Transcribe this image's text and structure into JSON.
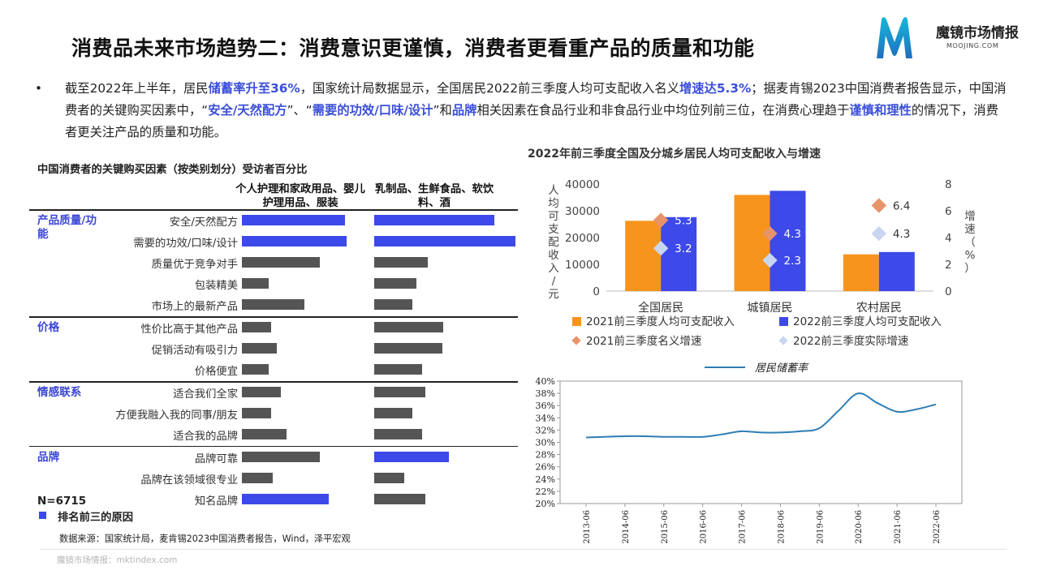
{
  "header": {
    "title": "消费品未来市场趋势二：消费意识更谨慎，消费者更看重产品的质量和功能",
    "logo_name": "魔镜市场情报",
    "logo_sub": "MOOJING.COM"
  },
  "bullet": {
    "dot": "•",
    "segments": [
      {
        "t": "截至2022年上半年，居民",
        "hl": false
      },
      {
        "t": "储蓄率升至36%",
        "hl": true
      },
      {
        "t": "，国家统计局数据显示，全国居民2022前三季度人均可支配收入名义",
        "hl": false
      },
      {
        "t": "增速达5.3%",
        "hl": true
      },
      {
        "t": "；据麦肯锡2023中国消费者报告显示，中国消费者的关键购买因素中，“",
        "hl": false
      },
      {
        "t": "安全/天然配方",
        "hl": true
      },
      {
        "t": "”、“",
        "hl": false
      },
      {
        "t": "需要的功效/口味/设计",
        "hl": true
      },
      {
        "t": "”和",
        "hl": false
      },
      {
        "t": "品牌",
        "hl": true
      },
      {
        "t": "相关因素在食品行业和非食品行业中均位列前三位，在消费心理趋于",
        "hl": false
      },
      {
        "t": "谨慎和理性",
        "hl": true
      },
      {
        "t": "的情况下，消费者更关注产品的质量和功能。",
        "hl": false
      }
    ]
  },
  "left_panel": {
    "title": "中国消费者的关键购买因素（按类别划分）受访者百分比",
    "col1_header": "个人护理和家政用品、婴儿护理用品、服装",
    "col2_header": "乳制品、生鲜食品、软饮料、酒",
    "n_label": "N=6715",
    "legend_label": "排名前三的原因",
    "source": "数据来源：国家统计局，麦肯锡2023中国消费者报告，Wind，泽平宏观",
    "footer": "魔镜市场情报：mktindex.com"
  },
  "chart_data": [
    {
      "type": "bar",
      "title": "中国消费者的关键购买因素（按类别划分）受访者百分比",
      "note": "values estimated relative to longest bar (no numeric axis shown)",
      "groups": [
        {
          "name": "产品质量/功能",
          "items": [
            {
              "label": "安全/天然配方",
              "c1": 0.74,
              "c1_top3": true,
              "c2": 0.85,
              "c2_top3": true
            },
            {
              "label": "需要的功效/口味/设计",
              "c1": 0.75,
              "c1_top3": true,
              "c2": 1.0,
              "c2_top3": true
            },
            {
              "label": "质量优于竞争对手",
              "c1": 0.56,
              "c1_top3": false,
              "c2": 0.38,
              "c2_top3": false
            },
            {
              "label": "包装精美",
              "c1": 0.19,
              "c1_top3": false,
              "c2": 0.3,
              "c2_top3": false
            },
            {
              "label": "市场上的最新产品",
              "c1": 0.45,
              "c1_top3": false,
              "c2": 0.27,
              "c2_top3": false
            }
          ]
        },
        {
          "name": "价格",
          "items": [
            {
              "label": "性价比高于其他产品",
              "c1": 0.21,
              "c1_top3": false,
              "c2": 0.49,
              "c2_top3": false
            },
            {
              "label": "促销活动有吸引力",
              "c1": 0.25,
              "c1_top3": false,
              "c2": 0.48,
              "c2_top3": false
            },
            {
              "label": "价格便宜",
              "c1": 0.19,
              "c1_top3": false,
              "c2": 0.34,
              "c2_top3": false
            }
          ]
        },
        {
          "name": "情感联系",
          "items": [
            {
              "label": "适合我们全家",
              "c1": 0.28,
              "c1_top3": false,
              "c2": 0.36,
              "c2_top3": false
            },
            {
              "label": "方便我融入我的同事/朋友",
              "c1": 0.21,
              "c1_top3": false,
              "c2": 0.27,
              "c2_top3": false
            },
            {
              "label": "适合我的品牌",
              "c1": 0.32,
              "c1_top3": false,
              "c2": 0.34,
              "c2_top3": false
            }
          ]
        },
        {
          "name": "品牌",
          "items": [
            {
              "label": "品牌可靠",
              "c1": 0.56,
              "c1_top3": false,
              "c2": 0.53,
              "c2_top3": true
            },
            {
              "label": "品牌在该领域很专业",
              "c1": 0.22,
              "c1_top3": false,
              "c2": 0.21,
              "c2_top3": false
            },
            {
              "label": "知名品牌",
              "c1": 0.62,
              "c1_top3": true,
              "c2": 0.36,
              "c2_top3": false
            }
          ]
        }
      ],
      "colors": {
        "top3": "#3d49e8",
        "other": "#555555"
      }
    },
    {
      "type": "bar",
      "title": "2022年前三季度全国及分城乡居民人均可支配收入与增速",
      "categories": [
        "全国居民",
        "城镇居民",
        "农村居民"
      ],
      "series": [
        {
          "name": "2021前三季度人均可支配收入",
          "kind": "bar",
          "axis": "left",
          "color": "#f7941d",
          "values": [
            26265,
            35946,
            13726
          ]
        },
        {
          "name": "2022前三季度人均可支配收入",
          "kind": "bar",
          "axis": "left",
          "color": "#3d49e8",
          "values": [
            27650,
            37482,
            14600
          ]
        },
        {
          "name": "2021前三季度名义增速",
          "kind": "point",
          "axis": "right",
          "color": "#e8946a",
          "values": [
            5.3,
            4.3,
            6.4
          ]
        },
        {
          "name": "2022前三季度实际增速",
          "kind": "point",
          "axis": "right",
          "color": "#c9d6f2",
          "values": [
            3.2,
            2.3,
            4.3
          ]
        }
      ],
      "ylabel": "人均可支配收入/元",
      "ylim": [
        0,
        40000
      ],
      "yticks": [
        "0",
        "10000",
        "20000",
        "30000",
        "40000"
      ],
      "y2label": "增速（%）",
      "y2lim": [
        0,
        8
      ],
      "y2ticks": [
        "0",
        "2",
        "4",
        "6",
        "8"
      ]
    },
    {
      "type": "line",
      "title": "",
      "series": [
        {
          "name": "居民储蓄率",
          "color": "#2e7db5",
          "x": [
            "2013-06",
            "2013-12",
            "2014-06",
            "2014-12",
            "2015-06",
            "2015-12",
            "2016-06",
            "2016-12",
            "2017-06",
            "2017-12",
            "2018-06",
            "2018-12",
            "2019-06",
            "2019-12",
            "2020-06",
            "2020-12",
            "2021-06",
            "2021-12",
            "2022-06"
          ],
          "values": [
            30.8,
            30.9,
            31.0,
            31.0,
            30.9,
            30.9,
            30.9,
            31.3,
            31.8,
            31.6,
            31.6,
            31.8,
            32.3,
            35.2,
            38.0,
            36.4,
            35.0,
            35.4,
            36.2
          ]
        }
      ],
      "xticks": [
        "2013-06",
        "2014-06",
        "2015-06",
        "2016-06",
        "2017-06",
        "2018-06",
        "2019-06",
        "2020-06",
        "2021-06",
        "2022-06"
      ],
      "ylim": [
        20,
        40
      ],
      "yticks": [
        "20%",
        "22%",
        "24%",
        "26%",
        "28%",
        "30%",
        "32%",
        "34%",
        "36%",
        "38%",
        "40%"
      ]
    }
  ]
}
